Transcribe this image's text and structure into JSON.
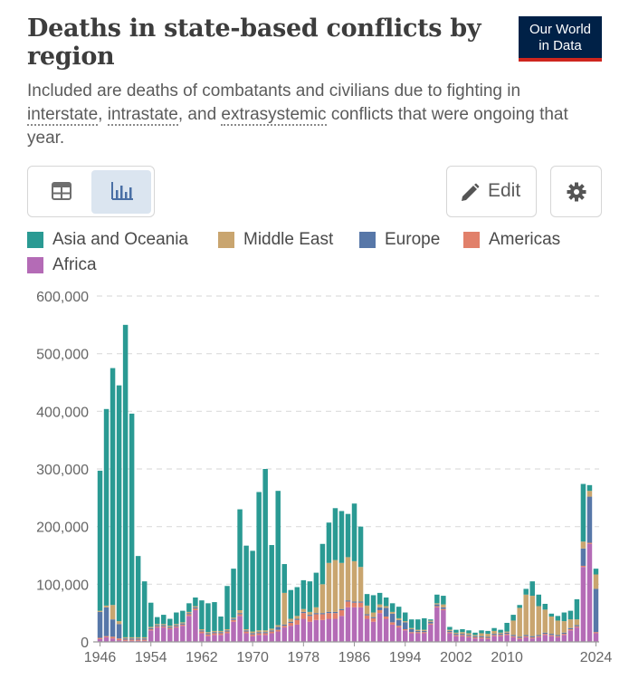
{
  "header": {
    "title": "Deaths in state-based conflicts by region",
    "logo_line1": "Our World",
    "logo_line2": "in Data",
    "subtitle_pre": "Included are deaths of combatants and civilians due to fighting in ",
    "subtitle_link1": "interstate",
    "subtitle_sep1": ", ",
    "subtitle_link2": "intrastate",
    "subtitle_sep2": ", and ",
    "subtitle_link3": "extrasystemic",
    "subtitle_post": " conflicts that were ongoing that year."
  },
  "controls": {
    "table_icon": "table-icon",
    "chart_icon": "bar-chart-icon",
    "edit_label": "Edit",
    "edit_icon": "pencil-icon",
    "settings_icon": "gear-icon"
  },
  "colors": {
    "asia": "#2a9a93",
    "middle_east": "#c9a56f",
    "europe": "#5777a8",
    "americas": "#e1806a",
    "africa": "#b46bb6",
    "logo_bg": "#002147",
    "logo_accent": "#ce261e"
  },
  "chart_data": {
    "type": "bar",
    "stacked": true,
    "ylim": [
      0,
      600000
    ],
    "yticks": [
      0,
      100000,
      200000,
      300000,
      400000,
      500000,
      600000
    ],
    "ytick_labels": [
      "0",
      "100,000",
      "200,000",
      "300,000",
      "400,000",
      "500,000",
      "600,000"
    ],
    "xtick_labels": [
      "1946",
      "1954",
      "1962",
      "1970",
      "1978",
      "1986",
      "1994",
      "2002",
      "2010",
      "2024"
    ],
    "grid": true,
    "legend_position": "top",
    "x": [
      1946,
      1947,
      1948,
      1949,
      1950,
      1951,
      1952,
      1953,
      1954,
      1955,
      1956,
      1957,
      1958,
      1959,
      1960,
      1961,
      1962,
      1963,
      1964,
      1965,
      1966,
      1967,
      1968,
      1969,
      1970,
      1971,
      1972,
      1973,
      1974,
      1975,
      1976,
      1977,
      1978,
      1979,
      1980,
      1981,
      1982,
      1983,
      1984,
      1985,
      1986,
      1987,
      1988,
      1989,
      1990,
      1991,
      1992,
      1993,
      1994,
      1995,
      1996,
      1997,
      1998,
      1999,
      2000,
      2001,
      2002,
      2003,
      2004,
      2005,
      2006,
      2007,
      2008,
      2009,
      2010,
      2011,
      2012,
      2013,
      2014,
      2015,
      2016,
      2017,
      2018,
      2019,
      2020,
      2021,
      2022,
      2023,
      2024
    ],
    "series": [
      {
        "name": "Africa",
        "color_key": "africa",
        "values": [
          5000,
          8000,
          6000,
          3000,
          2000,
          2000,
          2000,
          2000,
          20000,
          25000,
          25000,
          22000,
          25000,
          28000,
          45000,
          55000,
          15000,
          10000,
          12000,
          12000,
          15000,
          35000,
          45000,
          15000,
          10000,
          12000,
          12000,
          15000,
          18000,
          25000,
          28000,
          30000,
          40000,
          35000,
          38000,
          38000,
          40000,
          40000,
          45000,
          60000,
          60000,
          60000,
          40000,
          35000,
          50000,
          40000,
          30000,
          25000,
          20000,
          15000,
          15000,
          15000,
          30000,
          60000,
          55000,
          15000,
          10000,
          10000,
          8000,
          6000,
          6000,
          5000,
          10000,
          10000,
          12000,
          8000,
          5000,
          8000,
          6000,
          8000,
          12000,
          10000,
          8000,
          12000,
          20000,
          25000,
          130000,
          170000,
          15000
        ]
      },
      {
        "name": "Americas",
        "color_key": "americas",
        "values": [
          2000,
          2000,
          3000,
          3000,
          2000,
          2000,
          2000,
          2000,
          2000,
          2000,
          2000,
          2000,
          2000,
          2000,
          3000,
          3000,
          3000,
          3000,
          3000,
          3000,
          3000,
          3000,
          3000,
          3000,
          3000,
          3000,
          3000,
          3000,
          3000,
          3000,
          5000,
          8000,
          10000,
          10000,
          10000,
          10000,
          10000,
          10000,
          10000,
          10000,
          8000,
          8000,
          6000,
          6000,
          5000,
          4000,
          4000,
          3000,
          2000,
          2000,
          2000,
          2000,
          2000,
          2000,
          2000,
          2000,
          2000,
          2000,
          2000,
          2000,
          2000,
          2000,
          2000,
          2000,
          2000,
          2000,
          2000,
          2000,
          2000,
          2000,
          2000,
          2000,
          2000,
          2000,
          2000,
          2000,
          2000,
          2000,
          2000
        ]
      },
      {
        "name": "Europe",
        "color_key": "europe",
        "values": [
          45000,
          50000,
          30000,
          25000,
          2000,
          2000,
          2000,
          2000,
          2000,
          2000,
          2000,
          2000,
          2000,
          2000,
          2000,
          2000,
          2000,
          2000,
          2000,
          2000,
          2000,
          2000,
          2000,
          2000,
          2000,
          2000,
          2000,
          2000,
          5000,
          2000,
          2000,
          2000,
          2000,
          2000,
          2000,
          2000,
          2000,
          2000,
          2000,
          2000,
          2000,
          2000,
          2000,
          2000,
          5000,
          15000,
          15000,
          10000,
          12000,
          5000,
          2000,
          2000,
          3000,
          3000,
          3000,
          2000,
          2000,
          2000,
          2000,
          2000,
          2000,
          2000,
          2000,
          2000,
          2000,
          2000,
          2000,
          2000,
          2000,
          2000,
          2000,
          2000,
          2000,
          2000,
          2000,
          2000,
          30000,
          80000,
          75000
        ]
      },
      {
        "name": "Middle East",
        "color_key": "middle_east",
        "values": [
          2000,
          3000,
          25000,
          5000,
          2000,
          2000,
          2000,
          2000,
          2000,
          2000,
          2000,
          2000,
          2000,
          2000,
          2000,
          2000,
          2000,
          2000,
          2000,
          2000,
          2000,
          2000,
          5000,
          2000,
          3000,
          3000,
          3000,
          3000,
          3000,
          55000,
          5000,
          5000,
          5000,
          5000,
          10000,
          50000,
          85000,
          90000,
          80000,
          75000,
          70000,
          60000,
          15000,
          8000,
          5000,
          3000,
          3000,
          3000,
          2000,
          2000,
          2000,
          2000,
          2000,
          2000,
          5000,
          2000,
          2000,
          3000,
          3000,
          2000,
          5000,
          5000,
          5000,
          2000,
          2000,
          25000,
          50000,
          70000,
          70000,
          50000,
          40000,
          30000,
          25000,
          20000,
          15000,
          10000,
          12000,
          10000,
          25000
        ]
      },
      {
        "name": "Asia and Oceania",
        "color_key": "asia",
        "values": [
          243000,
          341000,
          411000,
          409000,
          542000,
          388000,
          141000,
          97000,
          42000,
          12000,
          16000,
          12000,
          20000,
          20000,
          15000,
          15000,
          50000,
          50000,
          50000,
          25000,
          75000,
          85000,
          175000,
          145000,
          140000,
          240000,
          280000,
          145000,
          233000,
          50000,
          50000,
          50000,
          50000,
          53000,
          60000,
          70000,
          70000,
          90000,
          90000,
          75000,
          100000,
          70000,
          20000,
          30000,
          20000,
          15000,
          15000,
          20000,
          15000,
          15000,
          18000,
          20000,
          2000,
          15000,
          15000,
          5000,
          5000,
          5000,
          5000,
          4000,
          5000,
          5000,
          5000,
          5000,
          15000,
          10000,
          5000,
          10000,
          25000,
          20000,
          10000,
          5000,
          8000,
          15000,
          15000,
          35000,
          100000,
          10000,
          10000
        ]
      }
    ]
  },
  "legend": [
    {
      "label": "Asia and Oceania",
      "color_key": "asia"
    },
    {
      "label": "Middle East",
      "color_key": "middle_east"
    },
    {
      "label": "Europe",
      "color_key": "europe"
    },
    {
      "label": "Americas",
      "color_key": "americas"
    },
    {
      "label": "Africa",
      "color_key": "africa"
    }
  ]
}
